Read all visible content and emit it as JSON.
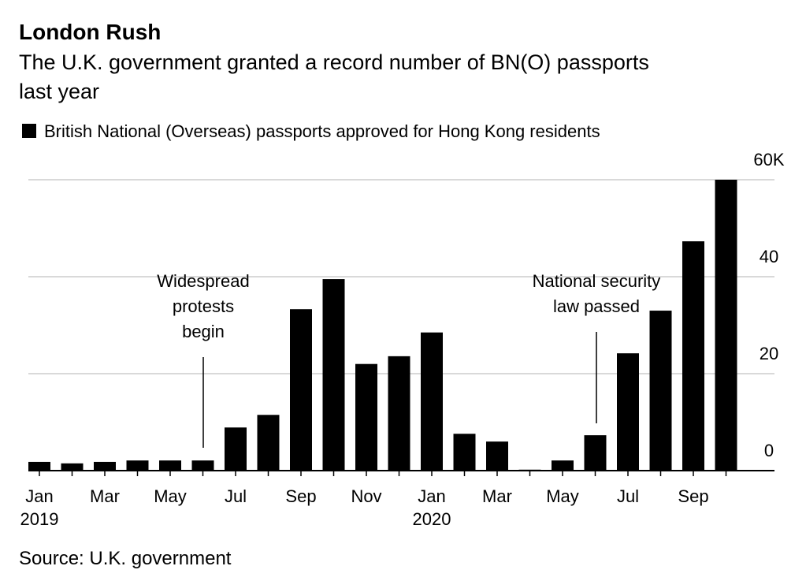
{
  "chart_data": {
    "type": "bar",
    "title": "London Rush",
    "subtitle": [
      "The U.K. government granted a record number of BN(O) passports",
      "last year"
    ],
    "legend": "British National (Overseas) passports approved for Hong Kong residents",
    "source": "Source: U.K. government",
    "color": "#000000",
    "categories": [
      "Jan 2019",
      null,
      "Mar",
      null,
      "May",
      null,
      "Jul",
      null,
      "Sep",
      null,
      "Nov",
      null,
      "Jan 2020",
      null,
      "Mar",
      null,
      "May",
      null,
      "Jul",
      null,
      "Sep",
      null
    ],
    "values": [
      1.8,
      1.5,
      1.8,
      2.1,
      2.1,
      2.1,
      8.9,
      11.5,
      33.3,
      39.5,
      22.0,
      23.6,
      28.5,
      7.6,
      6.0,
      0.2,
      2.1,
      7.3,
      24.2,
      33.0,
      47.3,
      60
    ],
    "ylim": [
      0,
      60
    ],
    "yticks": [
      0,
      20,
      40,
      {
        "value": 60,
        "label": "60K"
      }
    ],
    "grid": true,
    "annotations": [
      {
        "lines": [
          "Widespread",
          "protests",
          "begin"
        ]
      },
      {
        "lines": [
          "National security",
          "law passed"
        ]
      }
    ]
  }
}
